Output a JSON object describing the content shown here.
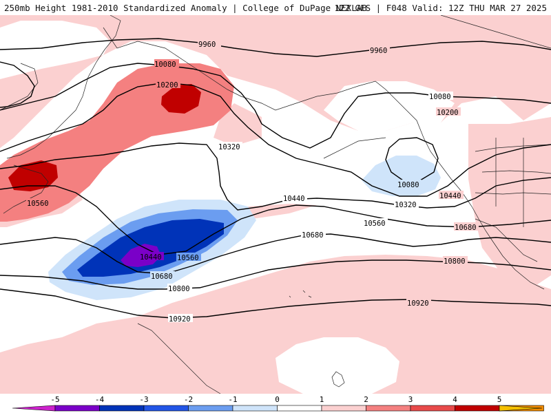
{
  "header": {
    "title_left": "250mb Height 1981-2010 Standardized Anomaly | College of DuPage NEXLAB",
    "title_right": "12Z GFS | F048 Valid: 12Z THU MAR 27 2025"
  },
  "contours": {
    "c9960": "9960",
    "c10080": "10080",
    "c10200": "10200",
    "c10320": "10320",
    "c10440": "10440",
    "c10560": "10560",
    "c10680": "10680",
    "c10800": "10800",
    "c10920": "10920"
  },
  "colorbar": {
    "ticks": [
      "-5",
      "-4",
      "-3",
      "-2",
      "-1",
      "0",
      "1",
      "2",
      "3",
      "4",
      "5"
    ],
    "colors": [
      "#cc22cc",
      "#7a00c8",
      "#0033b8",
      "#2255e6",
      "#6b9df0",
      "#cfe4fa",
      "#ffffff",
      "#fbd0d0",
      "#f48080",
      "#e84a4a",
      "#c00000",
      "#f28c00",
      "#f5c000"
    ]
  }
}
